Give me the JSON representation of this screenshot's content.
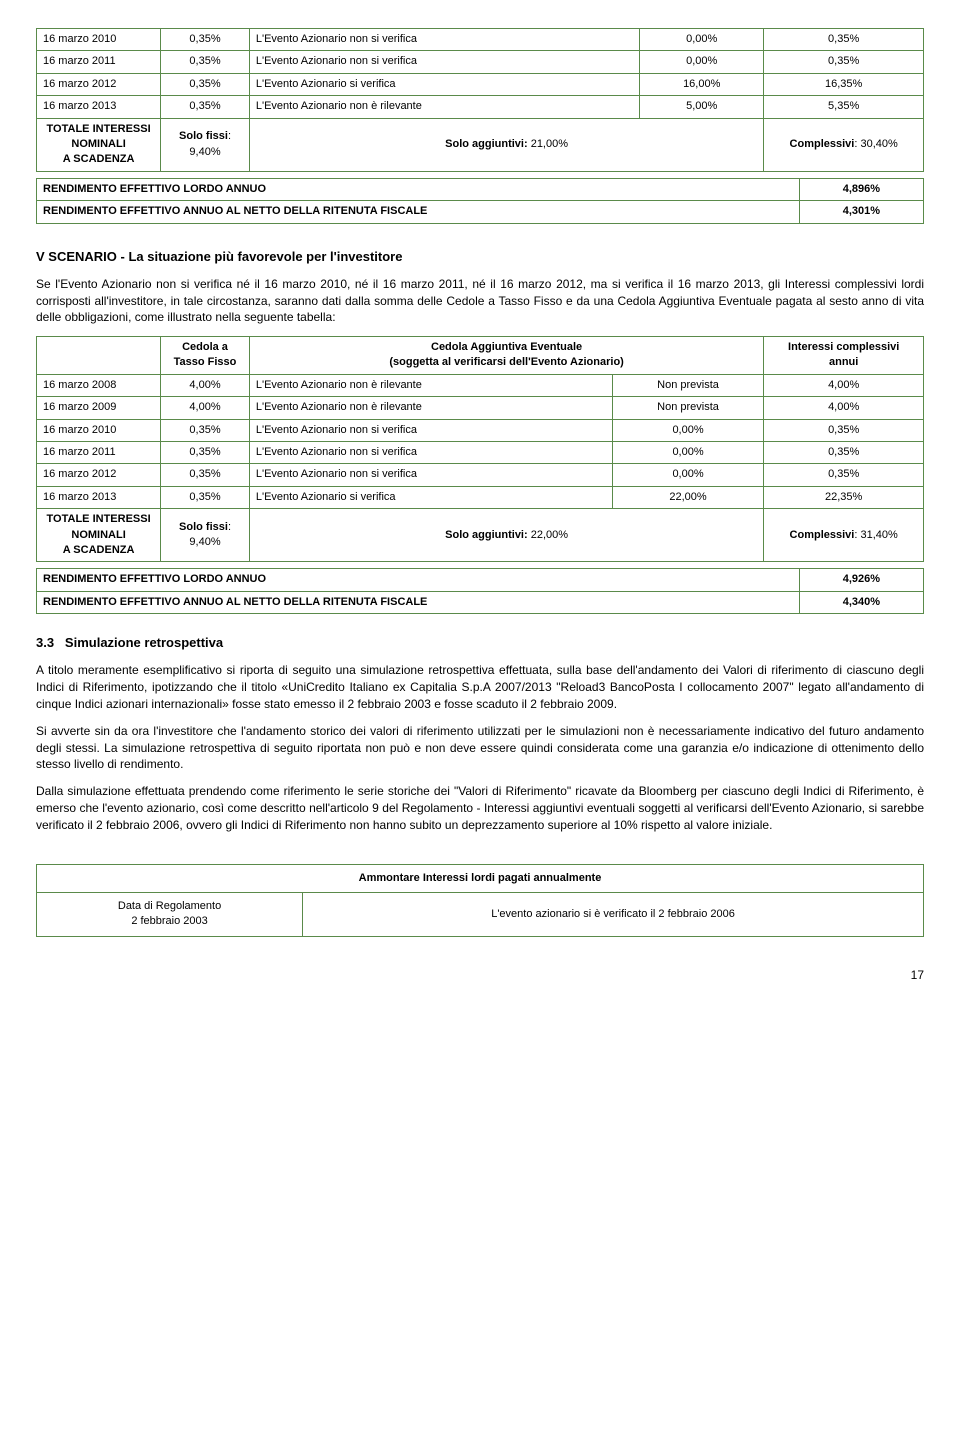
{
  "table1": {
    "rows": [
      {
        "date": "16 marzo 2010",
        "fisso": "0,35%",
        "event": "L'Evento Azionario non si verifica",
        "val": "0,00%",
        "annui": "0,35%"
      },
      {
        "date": "16 marzo 2011",
        "fisso": "0,35%",
        "event": "L'Evento Azionario non si verifica",
        "val": "0,00%",
        "annui": "0,35%"
      },
      {
        "date": "16 marzo 2012",
        "fisso": "0,35%",
        "event": "L'Evento Azionario si verifica",
        "val": "16,00%",
        "annui": "16,35%"
      },
      {
        "date": "16 marzo 2013",
        "fisso": "0,35%",
        "event": "L'Evento Azionario non è rilevante",
        "val": "5,00%",
        "annui": "5,35%"
      }
    ],
    "summary": {
      "label": "TOTALE INTERESSI NOMINALI A SCADENZA",
      "solo_fissi_lbl": "Solo fissi",
      "solo_fissi_val": ": 9,40%",
      "solo_agg_lbl": "Solo aggiuntivi:",
      "solo_agg_val": " 21,00%",
      "compl_lbl": "Complessivi",
      "compl_val": ": 30,40%"
    },
    "rend_lordo_lbl": "RENDIMENTO EFFETTIVO LORDO ANNUO",
    "rend_lordo_val": "4,896%",
    "rend_netto_lbl": "RENDIMENTO EFFETTIVO ANNUO AL NETTO DELLA RITENUTA FISCALE",
    "rend_netto_val": "4,301%"
  },
  "scenarioTitle": "V SCENARIO - La situazione più favorevole per l'investitore",
  "scenarioText": "Se l'Evento Azionario non si verifica né il 16 marzo 2010, né il 16 marzo 2011, né il 16 marzo 2012, ma si verifica il 16 marzo 2013, gli Interessi complessivi lordi corrisposti all'investitore, in tale circostanza, saranno dati dalla somma delle Cedole a Tasso Fisso e da una Cedola Aggiuntiva Eventuale pagata al sesto anno di vita delle obbligazioni, come illustrato nella seguente tabella:",
  "table2": {
    "headers": {
      "h1": "",
      "h2a": "Cedola a",
      "h2b": "Tasso Fisso",
      "h3a": "Cedola Aggiuntiva Eventuale",
      "h3b": "(soggetta al verificarsi dell'Evento Azionario)",
      "h4a": "Interessi complessivi",
      "h4b": "annui"
    },
    "rows": [
      {
        "date": "16 marzo 2008",
        "fisso": "4,00%",
        "event": "L'Evento Azionario non è rilevante",
        "val": "Non prevista",
        "annui": "4,00%"
      },
      {
        "date": "16 marzo 2009",
        "fisso": "4,00%",
        "event": "L'Evento Azionario non è rilevante",
        "val": "Non prevista",
        "annui": "4,00%"
      },
      {
        "date": "16 marzo 2010",
        "fisso": "0,35%",
        "event": "L'Evento Azionario non si verifica",
        "val": "0,00%",
        "annui": "0,35%"
      },
      {
        "date": "16 marzo 2011",
        "fisso": "0,35%",
        "event": "L'Evento Azionario non si verifica",
        "val": "0,00%",
        "annui": "0,35%"
      },
      {
        "date": "16 marzo 2012",
        "fisso": "0,35%",
        "event": "L'Evento Azionario non si verifica",
        "val": "0,00%",
        "annui": "0,35%"
      },
      {
        "date": "16 marzo 2013",
        "fisso": "0,35%",
        "event": "L'Evento Azionario si verifica",
        "val": "22,00%",
        "annui": "22,35%"
      }
    ],
    "summary": {
      "label": "TOTALE INTERESSI NOMINALI A SCADENZA",
      "solo_fissi_lbl": "Solo fissi",
      "solo_fissi_val": ": 9,40%",
      "solo_agg_lbl": "Solo aggiuntivi:",
      "solo_agg_val": " 22,00%",
      "compl_lbl": "Complessivi",
      "compl_val": ": 31,40%"
    },
    "rend_lordo_lbl": "RENDIMENTO EFFETTIVO LORDO ANNUO",
    "rend_lordo_val": "4,926%",
    "rend_netto_lbl": "RENDIMENTO EFFETTIVO ANNUO AL NETTO DELLA RITENUTA FISCALE",
    "rend_netto_val": "4,340%"
  },
  "section33": {
    "num": "3.3",
    "title": "Simulazione retrospettiva",
    "p1": "A titolo meramente esemplificativo si riporta di seguito una simulazione retrospettiva effettuata, sulla base dell'andamento dei Valori di riferimento di ciascuno degli Indici di Riferimento, ipotizzando che il titolo «UniCredito Italiano ex Capitalia S.p.A 2007/2013 \"Reload3 BancoPosta I collocamento 2007\" legato all'andamento di cinque Indici azionari internazionali» fosse stato emesso il 2 febbraio 2003 e fosse scaduto il 2 febbraio 2009.",
    "p2": "Si avverte sin da ora l'investitore che l'andamento storico dei valori di riferimento utilizzati per le simulazioni non è necessariamente indicativo del futuro andamento degli stessi. La simulazione retrospettiva di seguito riportata non può e non deve essere quindi considerata come una garanzia e/o indicazione di ottenimento dello stesso livello di rendimento.",
    "p3": "Dalla simulazione effettuata prendendo come riferimento le serie storiche dei \"Valori di Riferimento\" ricavate da Bloomberg per ciascuno degli Indici di Riferimento, è emerso che l'evento azionario, così come descritto nell'articolo 9 del Regolamento - Interessi aggiuntivi eventuali soggetti al verificarsi dell'Evento Azionario, si sarebbe verificato il 2 febbraio 2006, ovvero gli Indici di Riferimento non hanno subito un deprezzamento superiore al 10% rispetto al valore iniziale."
  },
  "table3": {
    "title": "Ammontare Interessi lordi pagati annualmente",
    "left1": "Data di Regolamento",
    "left2": "2 febbraio 2003",
    "right": "L'evento azionario si è verificato il 2 febbraio 2006"
  },
  "pageNum": "17"
}
